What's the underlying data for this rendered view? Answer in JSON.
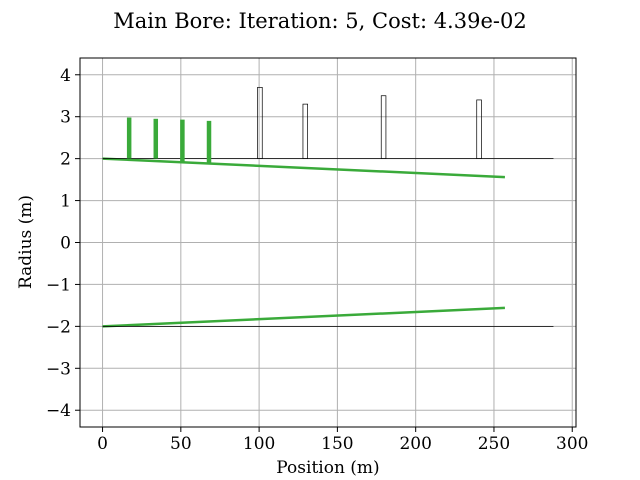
{
  "chart_data": {
    "type": "line",
    "title": "Main Bore: Iteration: 5, Cost: 4.39e-02",
    "xlabel": "Position (m)",
    "ylabel": "Radius (m)",
    "xlim": [
      -14.4,
      302.4
    ],
    "ylim": [
      -4.4,
      4.4
    ],
    "x_ticks": [
      0,
      50,
      100,
      150,
      200,
      250,
      300
    ],
    "x_tick_labels": [
      "0",
      "50",
      "100",
      "150",
      "200",
      "250",
      "300"
    ],
    "y_ticks": [
      -4,
      -3,
      -2,
      -1,
      0,
      1,
      2,
      3,
      4
    ],
    "y_tick_labels": [
      "−4",
      "−3",
      "−2",
      "−1",
      "0",
      "1",
      "2",
      "3",
      "4"
    ],
    "grid": true,
    "series": [
      {
        "color": "#3aaa3a",
        "x": [
          0,
          257
        ],
        "y": [
          2.0,
          1.56
        ]
      },
      {
        "color": "#3aaa3a",
        "x": [
          0,
          257
        ],
        "y": [
          -2.0,
          -1.56
        ]
      },
      {
        "color": "#000000",
        "x": [
          0,
          288
        ],
        "y": [
          2.0,
          2.0
        ]
      },
      {
        "color": "#000000",
        "x": [
          0,
          288
        ],
        "y": [
          -2.0,
          -2.0
        ]
      }
    ],
    "green_tone_holes": [
      {
        "x": 17,
        "bottom": 2.0,
        "top": 2.98
      },
      {
        "x": 34,
        "bottom": 2.0,
        "top": 2.95
      },
      {
        "x": 51,
        "bottom": 1.9,
        "top": 2.93
      },
      {
        "x": 68,
        "bottom": 1.88,
        "top": 2.9
      }
    ],
    "black_tone_holes": [
      {
        "x": 99,
        "x2": 102,
        "bottom": 2.0,
        "top": 3.7
      },
      {
        "x": 128,
        "x2": 131,
        "bottom": 2.0,
        "top": 3.3
      },
      {
        "x": 178,
        "x2": 181,
        "bottom": 2.0,
        "top": 3.5
      },
      {
        "x": 239,
        "x2": 242,
        "bottom": 2.0,
        "top": 3.4
      }
    ]
  }
}
